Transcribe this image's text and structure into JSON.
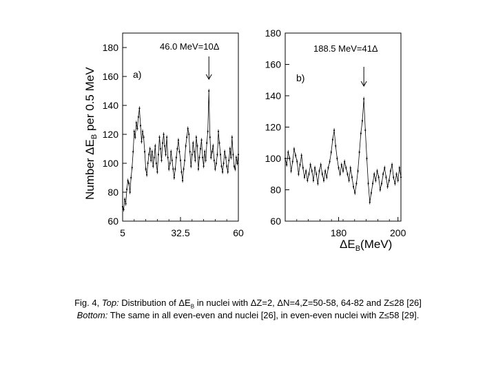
{
  "figure": {
    "ylabel": "Number ΔE",
    "ylabel_sub": "B",
    "ylabel_suffix": " per 0.5 MeV",
    "xlabel": "ΔE",
    "xlabel_sub": "B",
    "xlabel_suffix": "(MeV)"
  },
  "chart_data": [
    {
      "type": "line",
      "panel_label": "a)",
      "annotation": "46.0 MeV=10Δ",
      "arrow_x": 46.0,
      "xlim": [
        5,
        60
      ],
      "ylim": [
        60,
        190
      ],
      "xticks": [
        5,
        32.5,
        60
      ],
      "xtick_labels": [
        "5",
        "32.5",
        "60"
      ],
      "yticks": [
        60,
        80,
        100,
        120,
        140,
        160,
        180
      ],
      "ytick_labels": [
        "60",
        "80",
        "100",
        "120",
        "140",
        "160",
        "180"
      ],
      "x": [
        5,
        5.5,
        6,
        6.5,
        7,
        7.5,
        8,
        8.5,
        9,
        9.5,
        10,
        10.5,
        11,
        11.5,
        12,
        12.5,
        13,
        13.5,
        14,
        14.5,
        15,
        15.5,
        16,
        16.5,
        17,
        17.5,
        18,
        18.5,
        19,
        19.5,
        20,
        20.5,
        21,
        21.5,
        22,
        22.5,
        23,
        23.5,
        24,
        24.5,
        25,
        25.5,
        26,
        26.5,
        27,
        27.5,
        28,
        28.5,
        29,
        29.5,
        30,
        30.5,
        31,
        31.5,
        32,
        32.5,
        33,
        33.5,
        34,
        34.5,
        35,
        35.5,
        36,
        36.5,
        37,
        37.5,
        38,
        38.5,
        39,
        39.5,
        40,
        40.5,
        41,
        41.5,
        42,
        42.5,
        43,
        43.5,
        44,
        44.5,
        45,
        45.5,
        46,
        46.5,
        47,
        47.5,
        48,
        48.5,
        49,
        49.5,
        50,
        50.5,
        51,
        51.5,
        52,
        52.5,
        53,
        53.5,
        54,
        54.5,
        55,
        55.5,
        56,
        56.5,
        57,
        57.5,
        58,
        58.5,
        59,
        59.5,
        60
      ],
      "values": [
        70,
        68,
        75,
        72,
        82,
        88,
        86,
        80,
        90,
        97,
        108,
        122,
        118,
        128,
        124,
        132,
        138,
        126,
        115,
        122,
        118,
        108,
        96,
        92,
        100,
        106,
        110,
        102,
        108,
        98,
        104,
        112,
        100,
        94,
        106,
        118,
        110,
        102,
        114,
        120,
        112,
        106,
        118,
        104,
        96,
        100,
        108,
        102,
        96,
        90,
        96,
        104,
        110,
        116,
        108,
        102,
        94,
        88,
        96,
        102,
        112,
        118,
        124,
        120,
        108,
        98,
        106,
        114,
        108,
        102,
        118,
        112,
        96,
        104,
        110,
        116,
        104,
        98,
        108,
        102,
        114,
        122,
        150,
        118,
        104,
        108,
        112,
        102,
        96,
        100,
        106,
        122,
        114,
        106,
        98,
        94,
        100,
        108,
        104,
        98,
        94,
        102,
        110,
        104,
        118,
        106,
        98,
        96,
        104,
        100,
        106
      ]
    },
    {
      "type": "line",
      "panel_label": "b)",
      "annotation": "188.5 MeV=41Δ",
      "arrow_x": 188.5,
      "xlim": [
        162,
        201
      ],
      "ylim": [
        60,
        180
      ],
      "xticks": [
        180,
        200
      ],
      "xtick_labels": [
        "180",
        "200"
      ],
      "yticks": [
        60,
        80,
        100,
        120,
        140,
        160,
        180
      ],
      "ytick_labels": [
        "60",
        "80",
        "100",
        "120",
        "140",
        "160",
        "180"
      ],
      "x": [
        162,
        162.5,
        163,
        163.5,
        164,
        164.5,
        165,
        165.5,
        166,
        166.5,
        167,
        167.5,
        168,
        168.5,
        169,
        169.5,
        170,
        170.5,
        171,
        171.5,
        172,
        172.5,
        173,
        173.5,
        174,
        174.5,
        175,
        175.5,
        176,
        176.5,
        177,
        177.5,
        178,
        178.5,
        179,
        179.5,
        180,
        180.5,
        181,
        181.5,
        182,
        182.5,
        183,
        183.5,
        184,
        184.5,
        185,
        185.5,
        186,
        186.5,
        187,
        187.5,
        188,
        188.5,
        189,
        189.5,
        190,
        190.5,
        191,
        191.5,
        192,
        192.5,
        193,
        193.5,
        194,
        194.5,
        195,
        195.5,
        196,
        196.5,
        197,
        197.5,
        198,
        198.5,
        199,
        199.5,
        200,
        200.5,
        201
      ],
      "values": [
        100,
        96,
        104,
        100,
        92,
        98,
        106,
        102,
        98,
        90,
        96,
        102,
        94,
        88,
        92,
        86,
        90,
        96,
        92,
        86,
        94,
        90,
        84,
        92,
        96,
        90,
        86,
        92,
        88,
        94,
        98,
        104,
        112,
        118,
        108,
        100,
        94,
        90,
        96,
        92,
        98,
        94,
        90,
        86,
        94,
        88,
        82,
        78,
        84,
        92,
        104,
        116,
        124,
        138,
        118,
        100,
        84,
        72,
        78,
        84,
        90,
        86,
        92,
        88,
        80,
        84,
        90,
        94,
        88,
        82,
        86,
        92,
        96,
        88,
        84,
        90,
        86,
        94,
        88
      ]
    }
  ],
  "caption": {
    "line1_prefix": "Fig. 4, ",
    "line1_italic": "Top:",
    "line1_text": " Distribution of ΔE",
    "line1_sub": "B",
    "line1_rest": "  in nuclei with ΔZ=2, ΔN=4,Z=50-58, 64-82 and Z≤28 [26]",
    "line2_italic": "Bottom:",
    "line2_text": " The same in all even-even and nuclei [26], in even-even nuclei with Z≤58 [29]."
  }
}
